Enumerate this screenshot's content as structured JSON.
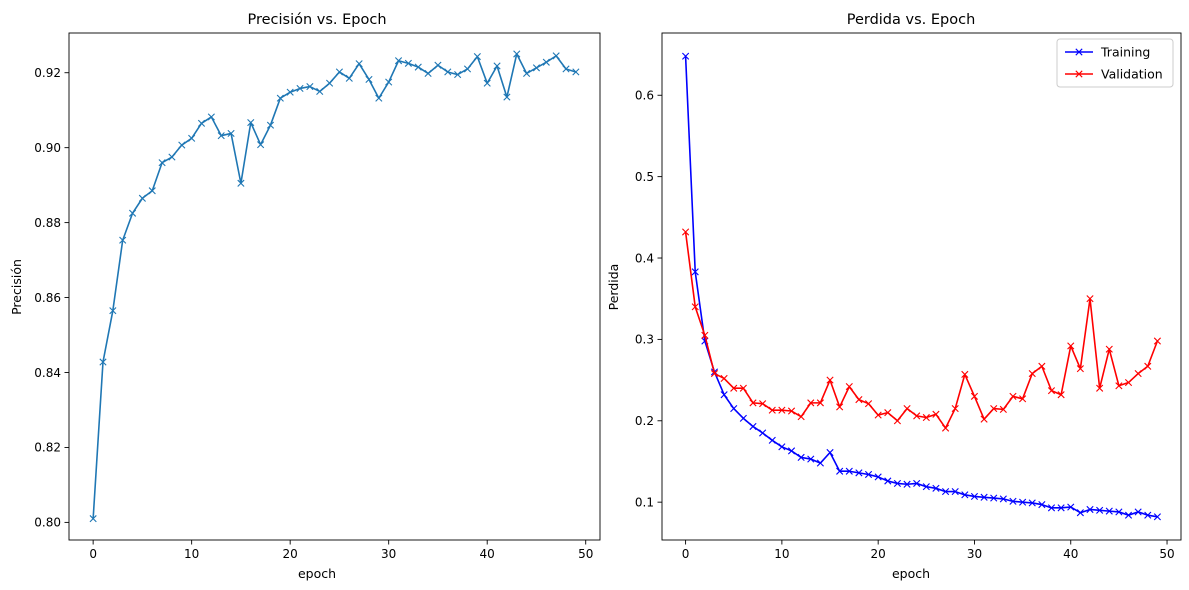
{
  "chart_data": [
    {
      "type": "line",
      "title": "Precisión vs. Epoch",
      "xlabel": "epoch",
      "ylabel": "Precisión",
      "xlim": [
        -2.45,
        51.45
      ],
      "ylim": [
        0.7953,
        0.9306
      ],
      "xticks": [
        0,
        10,
        20,
        30,
        40,
        50
      ],
      "yticks": [
        0.8,
        0.82,
        0.84,
        0.86,
        0.88,
        0.9,
        0.92
      ],
      "ytick_decimals": 2,
      "grid": false,
      "legend": null,
      "series": [
        {
          "color": "#1f77b4",
          "marker": "x",
          "x": [
            0,
            1,
            2,
            3,
            4,
            5,
            6,
            7,
            8,
            9,
            10,
            11,
            12,
            13,
            14,
            15,
            16,
            17,
            18,
            19,
            20,
            21,
            22,
            23,
            24,
            25,
            26,
            27,
            28,
            29,
            30,
            31,
            32,
            33,
            34,
            35,
            36,
            37,
            38,
            39,
            40,
            41,
            42,
            43,
            44,
            45,
            46,
            47,
            48,
            49
          ],
          "values": [
            0.801,
            0.8428,
            0.8565,
            0.8753,
            0.8825,
            0.8865,
            0.8885,
            0.896,
            0.8975,
            0.9007,
            0.9025,
            0.9065,
            0.9082,
            0.9032,
            0.9038,
            0.8905,
            0.9067,
            0.9008,
            0.906,
            0.9132,
            0.9148,
            0.9158,
            0.9163,
            0.915,
            0.9172,
            0.9202,
            0.9185,
            0.9224,
            0.9182,
            0.9132,
            0.9175,
            0.9232,
            0.9225,
            0.9215,
            0.9198,
            0.922,
            0.9202,
            0.9195,
            0.921,
            0.9243,
            0.9172,
            0.9218,
            0.9135,
            0.925,
            0.9198,
            0.9213,
            0.9228,
            0.9245,
            0.921,
            0.9202
          ]
        }
      ]
    },
    {
      "type": "line",
      "title": "Perdida vs. Epoch",
      "xlabel": "epoch",
      "ylabel": "Perdida",
      "xlim": [
        -2.45,
        51.45
      ],
      "ylim": [
        0.0535,
        0.6765
      ],
      "xticks": [
        0,
        10,
        20,
        30,
        40,
        50
      ],
      "yticks": [
        0.1,
        0.2,
        0.3,
        0.4,
        0.5,
        0.6
      ],
      "ytick_decimals": 1,
      "grid": false,
      "legend": "top-right",
      "series": [
        {
          "name": "Training",
          "color": "#0000ff",
          "marker": "x",
          "x": [
            0,
            1,
            2,
            3,
            4,
            5,
            6,
            7,
            8,
            9,
            10,
            11,
            12,
            13,
            14,
            15,
            16,
            17,
            18,
            19,
            20,
            21,
            22,
            23,
            24,
            25,
            26,
            27,
            28,
            29,
            30,
            31,
            32,
            33,
            34,
            35,
            36,
            37,
            38,
            39,
            40,
            41,
            42,
            43,
            44,
            45,
            46,
            47,
            48,
            49
          ],
          "values": [
            0.648,
            0.383,
            0.298,
            0.26,
            0.232,
            0.215,
            0.203,
            0.193,
            0.185,
            0.176,
            0.168,
            0.163,
            0.155,
            0.153,
            0.148,
            0.161,
            0.138,
            0.138,
            0.136,
            0.134,
            0.131,
            0.126,
            0.123,
            0.122,
            0.123,
            0.119,
            0.117,
            0.113,
            0.113,
            0.109,
            0.107,
            0.106,
            0.105,
            0.104,
            0.101,
            0.1,
            0.099,
            0.097,
            0.093,
            0.093,
            0.094,
            0.087,
            0.091,
            0.09,
            0.089,
            0.088,
            0.084,
            0.088,
            0.084,
            0.082
          ]
        },
        {
          "name": "Validation",
          "color": "#ff0000",
          "marker": "x",
          "x": [
            0,
            1,
            2,
            3,
            4,
            5,
            6,
            7,
            8,
            9,
            10,
            11,
            12,
            13,
            14,
            15,
            16,
            17,
            18,
            19,
            20,
            21,
            22,
            23,
            24,
            25,
            26,
            27,
            28,
            29,
            30,
            31,
            32,
            33,
            34,
            35,
            36,
            37,
            38,
            39,
            40,
            41,
            42,
            43,
            44,
            45,
            46,
            47,
            48,
            49
          ],
          "values": [
            0.432,
            0.34,
            0.305,
            0.258,
            0.252,
            0.24,
            0.24,
            0.222,
            0.221,
            0.213,
            0.213,
            0.212,
            0.205,
            0.222,
            0.222,
            0.25,
            0.217,
            0.242,
            0.226,
            0.221,
            0.207,
            0.21,
            0.2,
            0.215,
            0.206,
            0.204,
            0.208,
            0.191,
            0.215,
            0.257,
            0.23,
            0.202,
            0.215,
            0.214,
            0.23,
            0.227,
            0.258,
            0.267,
            0.237,
            0.232,
            0.292,
            0.264,
            0.35,
            0.24,
            0.288,
            0.243,
            0.247,
            0.258,
            0.267,
            0.298
          ]
        }
      ]
    }
  ]
}
